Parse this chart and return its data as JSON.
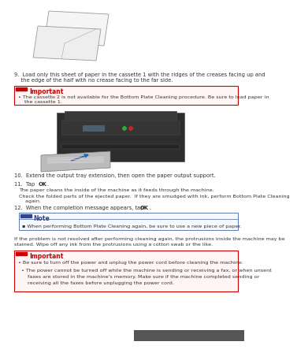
{
  "bg_color": "#ffffff",
  "text_color": "#333333",
  "important_bg": "#fff5f5",
  "note_bg": "#f8f8ff",
  "important_border": "#cc0000",
  "note_border": "#4466aa",
  "step9_line1": "9.  Load only this sheet of paper in the cassette 1 with the ridges of the creases facing up and",
  "step9_line2": "    the edge of the half with no crease facing to the far side.",
  "important1_title": "Important",
  "important1_bullet": "The cassette 2 is not available for the Bottom Plate Cleaning procedure. Be sure to load paper in\n    the cassette 1.",
  "step10_text": "10.  Extend the output tray extension, then open the paper output support.",
  "step11_label": "11.  Tap ",
  "step11_ok": "OK",
  "step11_dot": ".",
  "step11_sub1": "The paper cleans the inside of the machine as it feeds through the machine.",
  "step11_sub2": "Check the folded parts of the ejected paper.  If they are smudged with ink, perform Bottom Plate Cleaning\n    again.",
  "step12_label": "12.  When the completion message appears, tap ",
  "step12_ok": "OK",
  "step12_dot": ".",
  "note_title": "Note",
  "note_bullet": "When performing Bottom Plate Cleaning again, be sure to use a new piece of paper.",
  "paragraph_line1": "If the problem is not resolved after performing cleaning again, the protrusions inside the machine may be",
  "paragraph_line2": "stained. Wipe off any ink from the protrusions using a cotton swab or the like.",
  "important2_title": "Important",
  "important2_bullet1": "Be sure to turn off the power and unplug the power cord before cleaning the machine.",
  "important2_bullet2a": "The power cannot be turned off while the machine is sending or receiving a fax, or when unsent",
  "important2_bullet2b": "    faxes are stored in the machine's memory. Make sure if the machine completed sending or",
  "important2_bullet2c": "    receiving all the faxes before unplugging the power cord."
}
